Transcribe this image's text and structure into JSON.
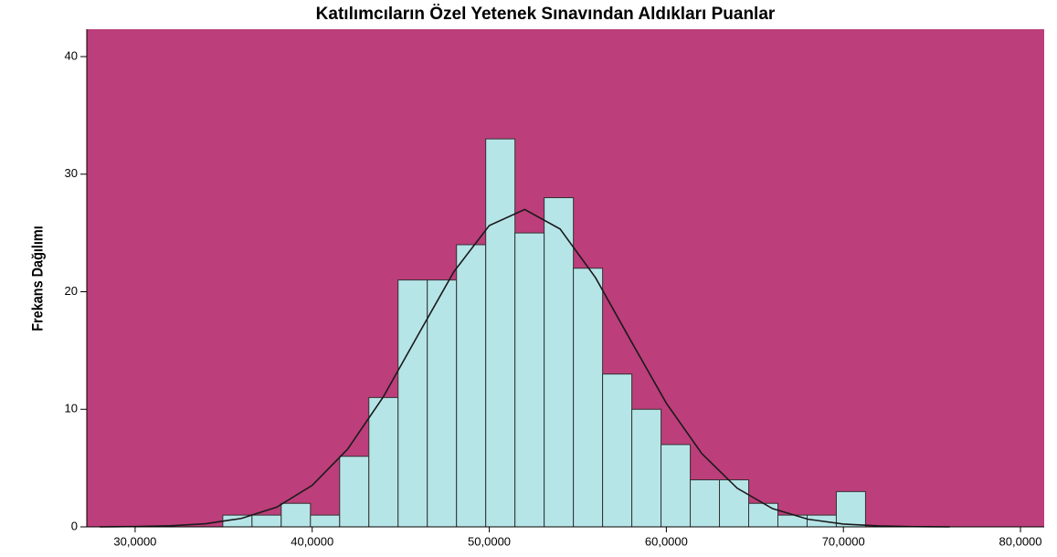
{
  "chart_data": {
    "type": "histogram",
    "title": "Katılımcıların Özel Yetenek Sınavından Aldıkları Puanlar",
    "ylabel": "Frekans Dağılımı",
    "bins": [
      34.95,
      36.6,
      38.25,
      39.9,
      41.55,
      43.2,
      44.85,
      46.5,
      48.15,
      49.8,
      51.45,
      53.1,
      54.75,
      56.4,
      58.05,
      59.7,
      61.35,
      63.0,
      64.65,
      66.3,
      67.95,
      69.6,
      71.25
    ],
    "counts": [
      1,
      1,
      2,
      1,
      6,
      11,
      21,
      21,
      24,
      33,
      25,
      28,
      22,
      13,
      10,
      7,
      4,
      4,
      2,
      1,
      1,
      3
    ],
    "color": "#b6e5e8",
    "background": "#bc3e7a",
    "curve": {
      "color": "#1a1a1a",
      "x": [
        28,
        30,
        32,
        34,
        36,
        38,
        40,
        42,
        44,
        46,
        48,
        50,
        52,
        54,
        56,
        58,
        60,
        62,
        64,
        66,
        68,
        70,
        72,
        74,
        76
      ],
      "values": [
        0.0,
        0.03,
        0.09,
        0.27,
        0.72,
        1.68,
        3.53,
        6.61,
        11.02,
        16.38,
        21.7,
        25.63,
        27.0,
        25.34,
        21.2,
        15.82,
        10.52,
        6.24,
        3.29,
        1.55,
        0.65,
        0.24,
        0.08,
        0.02,
        0.0
      ]
    },
    "xlim": [
      27.27,
      81.34
    ],
    "xticks": [
      {
        "value": 30,
        "label": "30,0000"
      },
      {
        "value": 40,
        "label": "40,0000"
      },
      {
        "value": 50,
        "label": "50,0000"
      },
      {
        "value": 60,
        "label": "60,0000"
      },
      {
        "value": 70,
        "label": "70,0000"
      },
      {
        "value": 80,
        "label": "80,0000"
      }
    ],
    "ylim": [
      0,
      42.33
    ],
    "yticks": [
      0,
      10,
      20,
      30,
      40
    ]
  }
}
